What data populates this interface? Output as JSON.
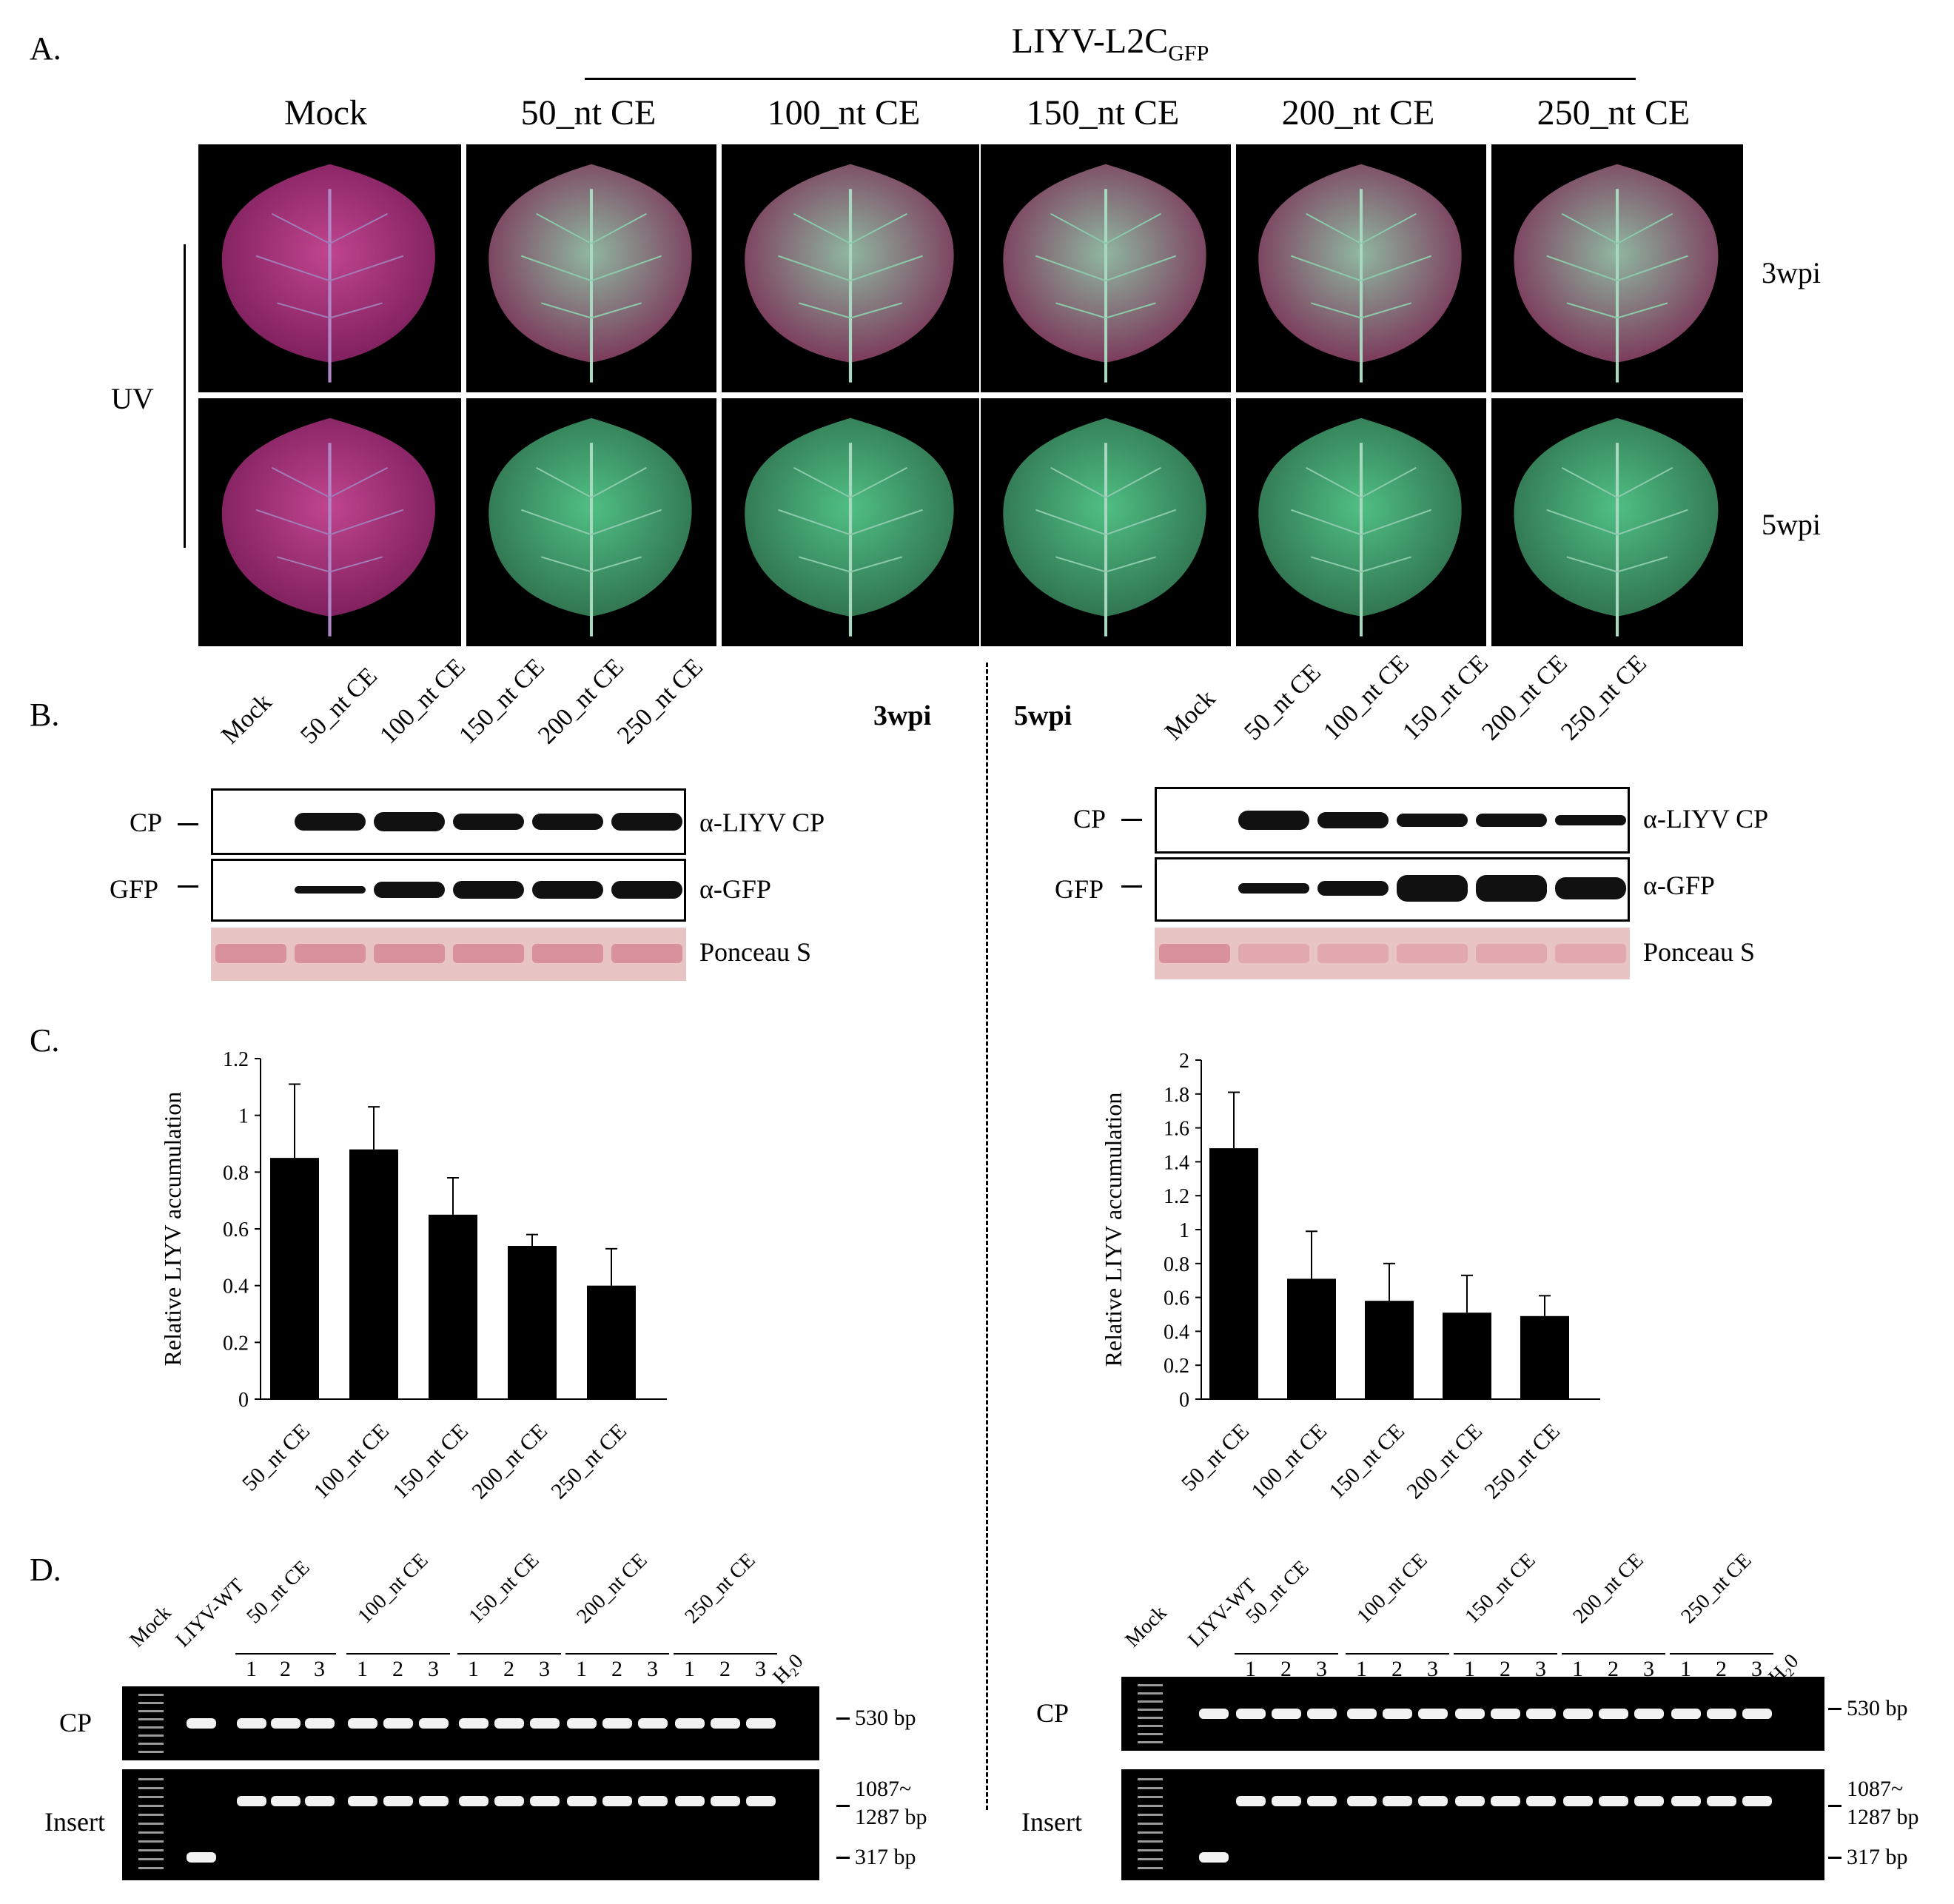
{
  "panels": {
    "a": "A.",
    "b": "B.",
    "c": "C.",
    "d": "D."
  },
  "panel_a": {
    "construct_prefix": "LIYV-L2C",
    "construct_sub": "GFP",
    "columns": [
      "Mock",
      "50_nt CE",
      "100_nt CE",
      "150_nt CE",
      "200_nt CE",
      "250_nt CE"
    ],
    "rows": [
      "3wpi",
      "5wpi"
    ],
    "side_label": "UV"
  },
  "panel_b": {
    "left_time": "3wpi",
    "right_time": "5wpi",
    "lanes": [
      "Mock",
      "50_nt CE",
      "100_nt CE",
      "150_nt CE",
      "200_nt CE",
      "250_nt CE"
    ],
    "row_labels": [
      "CP",
      "GFP"
    ],
    "antibodies": [
      "α-LIYV CP",
      "α-GFP",
      "Ponceau S"
    ]
  },
  "panel_d": {
    "lanes_top": [
      "Mock",
      "LIYV-WT",
      "50_nt CE",
      "100_nt CE",
      "150_nt CE",
      "200_nt CE",
      "250_nt CE",
      "H₂0"
    ],
    "reps": [
      "1",
      "2",
      "3"
    ],
    "row_labels": [
      "CP",
      "Insert"
    ],
    "sizes": [
      "530 bp",
      "1087~",
      "1287 bp",
      "317 bp"
    ]
  },
  "chart_data": [
    {
      "type": "bar",
      "categories": [
        "50_nt CE",
        "100_nt CE",
        "150_nt CE",
        "200_nt CE",
        "250_nt CE"
      ],
      "values": [
        0.85,
        0.88,
        0.65,
        0.54,
        0.4
      ],
      "errors": [
        0.26,
        0.15,
        0.13,
        0.04,
        0.13
      ],
      "ylabel": "Relative LIYV accumulation",
      "ylim": [
        0,
        1.2
      ],
      "yticks": [
        "0",
        "0.2",
        "0.4",
        "0.6",
        "0.8",
        "1",
        "1.2"
      ]
    },
    {
      "type": "bar",
      "categories": [
        "50_nt CE",
        "100_nt CE",
        "150_nt CE",
        "200_nt CE",
        "250_nt CE"
      ],
      "values": [
        1.48,
        0.71,
        0.58,
        0.51,
        0.49
      ],
      "errors": [
        0.33,
        0.28,
        0.22,
        0.22,
        0.12
      ],
      "ylabel": "Relative LIYV accumulation",
      "ylim": [
        0,
        2
      ],
      "yticks": [
        "0",
        "0.2",
        "0.4",
        "0.6",
        "0.8",
        "1",
        "1.2",
        "1.4",
        "1.6",
        "1.8",
        "2"
      ]
    }
  ]
}
